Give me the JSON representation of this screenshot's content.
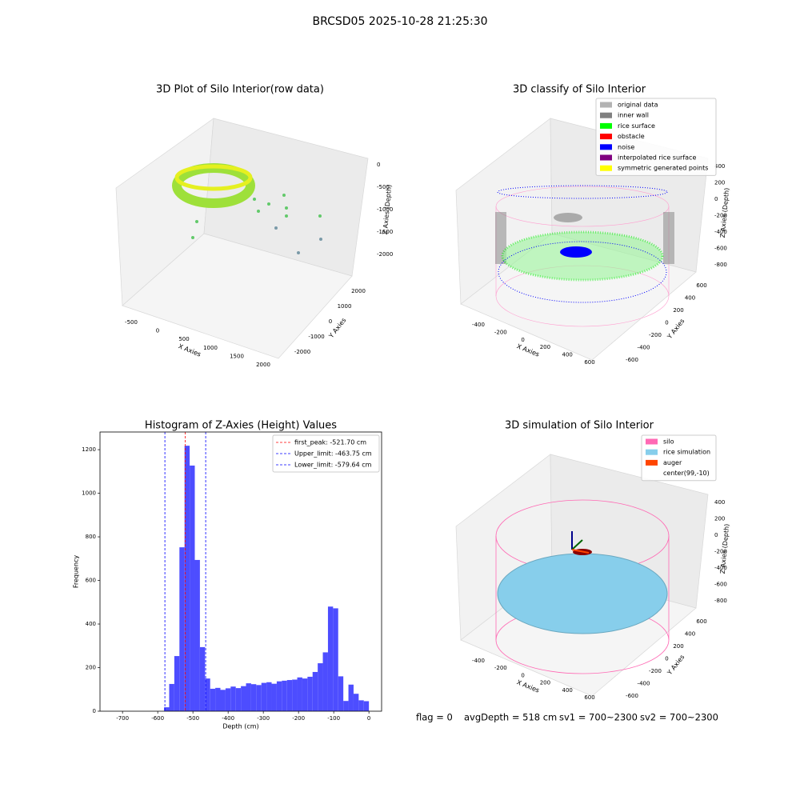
{
  "suptitle": "BRCSD05 2025-10-28 21:25:30",
  "chart_data": [
    {
      "type": "scatter3d",
      "title": "3D Plot of Silo Interior(row data)",
      "xlabel": "X Axies",
      "ylabel": "Y Axies",
      "zlabel": "Z Axies (Depth)",
      "xticks": [
        -500,
        0,
        500,
        1000,
        1500,
        2000
      ],
      "yticks": [
        -2000,
        -1000,
        0,
        1000,
        2000
      ],
      "zticks": [
        0,
        -500,
        -1000,
        -1500,
        -2000
      ]
    },
    {
      "type": "classify3d",
      "title": "3D classify of Silo Interior",
      "xlabel": "X Axies",
      "ylabel": "Y Axies",
      "zlabel": "Z Axies (Depth)",
      "xticks": [
        -400,
        -200,
        0,
        200,
        400,
        600
      ],
      "yticks": [
        -600,
        -400,
        -200,
        0,
        200,
        400,
        600
      ],
      "zticks": [
        400,
        200,
        0,
        -200,
        -400,
        -600,
        -800
      ],
      "legend": [
        {
          "name": "original data",
          "color": "#b3b3b3"
        },
        {
          "name": "inner wall",
          "color": "#808080"
        },
        {
          "name": "rice surface",
          "color": "#00ff00"
        },
        {
          "name": "obstacle",
          "color": "#ff0000"
        },
        {
          "name": "noise",
          "color": "#0000ff"
        },
        {
          "name": "interpolated rice surface",
          "color": "#800080"
        },
        {
          "name": "symmetric generated points",
          "color": "#ffff00"
        }
      ]
    },
    {
      "type": "histogram",
      "title": "Histogram of Z-Axies (Height) Values",
      "xlabel": "Depth (cm)",
      "ylabel": "Frequency",
      "color": "#4d4dff",
      "bins": [
        -582.0,
        -567.45,
        -552.9,
        -538.35,
        -523.8,
        -509.25,
        -494.7,
        -480.15,
        -465.6,
        -451.05,
        -436.5,
        -421.95,
        -407.4,
        -392.85,
        -378.3,
        -363.75,
        -349.2,
        -334.65,
        -320.1,
        -305.55,
        -291.0,
        -276.45,
        -261.9,
        -247.35,
        -232.8,
        -218.25,
        -203.7,
        -189.15,
        -174.6,
        -160.05,
        -145.5,
        -130.95,
        -116.4,
        -101.85,
        -87.3,
        -72.75,
        -58.2,
        -43.65,
        -29.1,
        -14.55,
        0
      ],
      "counts": [
        18,
        125,
        253,
        752,
        1218,
        1127,
        694,
        294,
        150,
        103,
        107,
        98,
        105,
        113,
        106,
        115,
        128,
        124,
        120,
        130,
        133,
        126,
        137,
        140,
        143,
        145,
        155,
        150,
        158,
        180,
        220,
        270,
        480,
        472,
        160,
        47,
        122,
        80,
        50,
        46
      ],
      "xlim": [
        -764,
        36
      ],
      "ylim": [
        0,
        1281
      ],
      "xticks": [
        -700,
        -600,
        -500,
        -400,
        -300,
        -200,
        -100,
        0
      ],
      "yticks": [
        0,
        200,
        400,
        600,
        800,
        1000,
        1200
      ],
      "vlines": [
        {
          "name": "first_peak: -521.70 cm",
          "value": -521.7,
          "color": "#ff0000"
        },
        {
          "name": "Upper_limit: -463.75 cm",
          "value": -463.75,
          "color": "#0000ff"
        },
        {
          "name": "Lower_limit: -579.64 cm",
          "value": -579.64,
          "color": "#0000ff"
        }
      ]
    },
    {
      "type": "simulation3d",
      "title": "3D simulation of Silo Interior",
      "xlabel": "X Axies",
      "ylabel": "Y Axies",
      "zlabel": "Z Axies (Depth)",
      "xticks": [
        -400,
        -200,
        0,
        200,
        400,
        600
      ],
      "yticks": [
        -600,
        -400,
        -200,
        0,
        200,
        400,
        600
      ],
      "zticks": [
        400,
        200,
        0,
        -200,
        -400,
        -600,
        -800
      ],
      "legend": [
        {
          "name": "silo",
          "color": "#ff69b4"
        },
        {
          "name": "rice simulation",
          "color": "#87ceeb"
        },
        {
          "name": "auger",
          "color": "#ff4500"
        },
        {
          "name": "center(99,-10)",
          "color": "#ffffff"
        }
      ]
    }
  ],
  "footer": [
    "flag = 0",
    "avgDepth = 518 cm",
    "sv1 = 700~2300",
    "sv2 = 700~2300"
  ]
}
